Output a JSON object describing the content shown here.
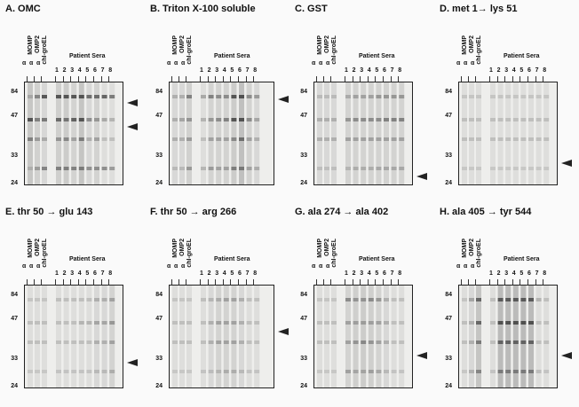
{
  "panels": [
    {
      "id": "A",
      "title": "A. OMC"
    },
    {
      "id": "B",
      "title": "B. Triton X-100 soluble"
    },
    {
      "id": "C",
      "title": "C. GST"
    },
    {
      "id": "D",
      "title": "D. met 1→ lys 51"
    },
    {
      "id": "E",
      "title": "E. thr 50 → glu 143"
    },
    {
      "id": "F",
      "title": "F. thr 50 → arg 266"
    },
    {
      "id": "G",
      "title": "G. ala 274 → ala 402"
    },
    {
      "id": "H",
      "title": "H. ala 405 → tyr 544"
    }
  ],
  "lane_labels": {
    "alpha": "α",
    "antibodies": [
      "MOMP",
      "OMP2",
      "chl-groEL"
    ],
    "patient_sera": "Patient Sera",
    "numbers": [
      "1",
      "2",
      "3",
      "4",
      "5",
      "6",
      "7",
      "8"
    ]
  },
  "mw_markers": [
    "84",
    "47",
    "33",
    "24"
  ],
  "colors": {
    "band": "#222222",
    "blot_bg": "#eeeeec"
  }
}
